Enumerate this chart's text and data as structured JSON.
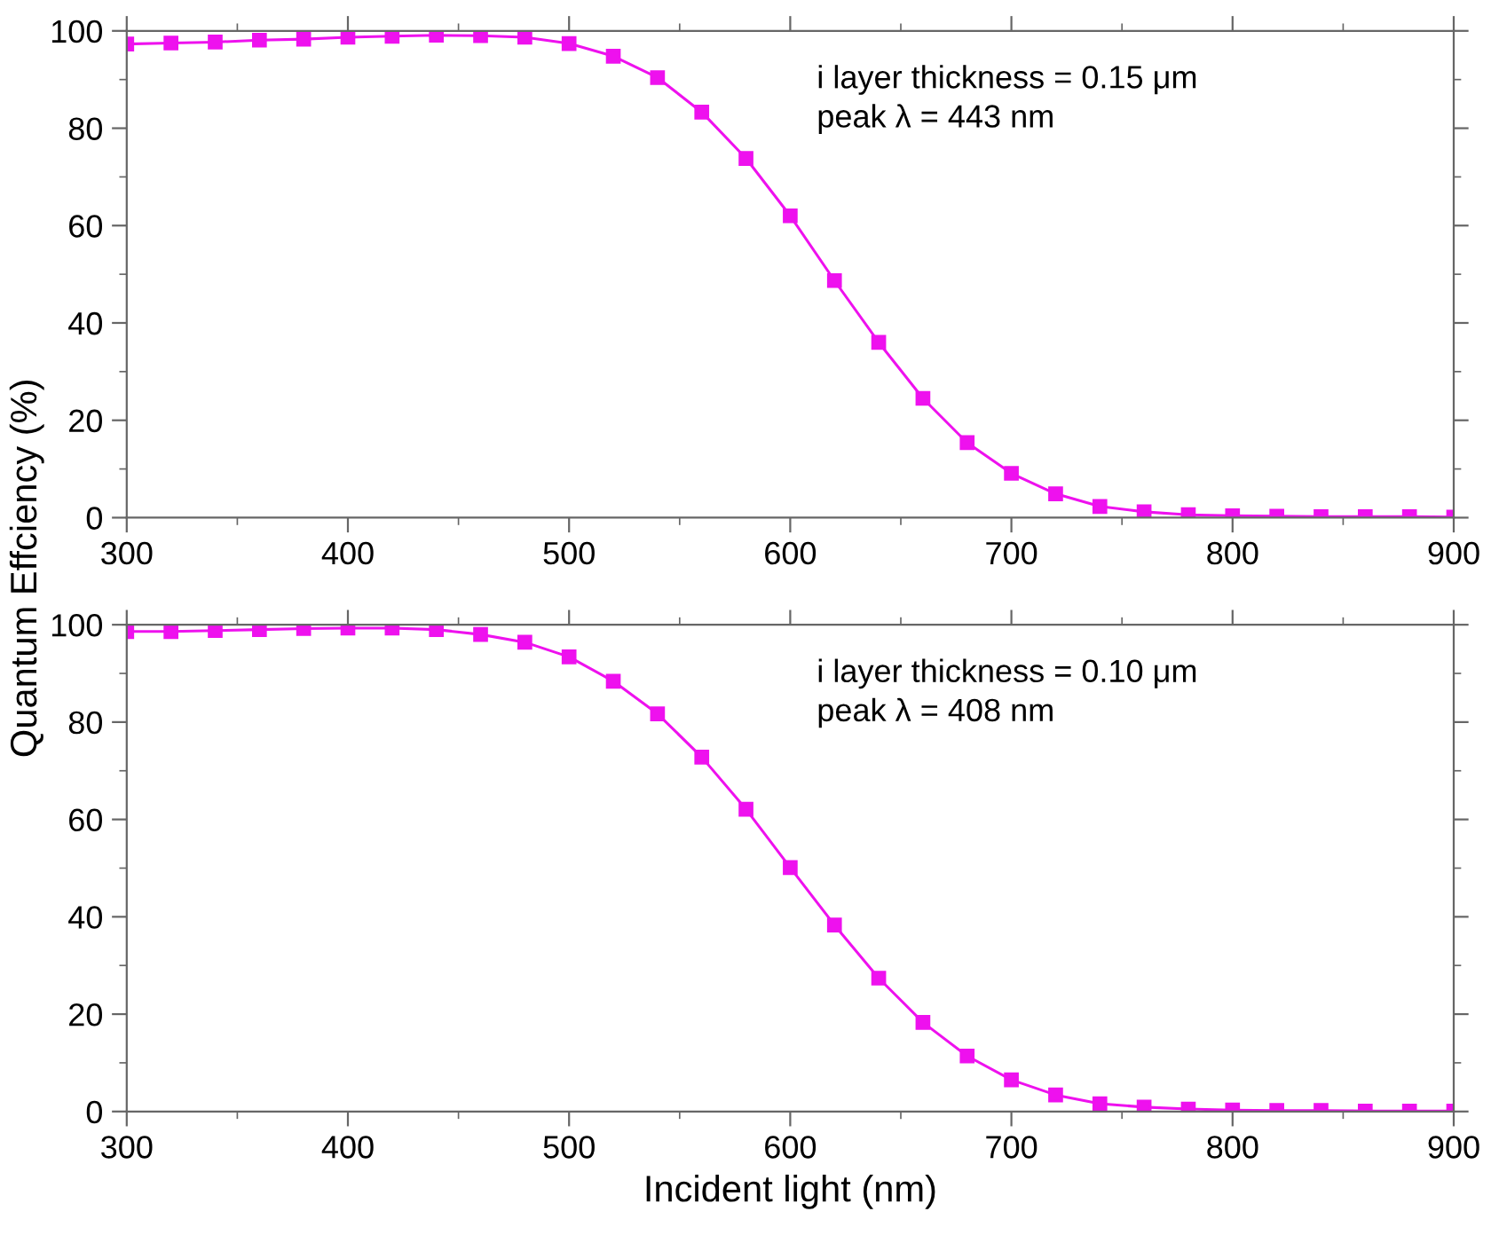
{
  "chart_data": [
    {
      "type": "line",
      "ylabel": "Quantum Effciency (%)",
      "annotations": [
        "i layer thickness = 0.15 μm\npeak λ = 443 nm"
      ],
      "x": [
        300,
        320,
        340,
        360,
        380,
        400,
        420,
        440,
        460,
        480,
        500,
        520,
        540,
        560,
        580,
        600,
        620,
        640,
        660,
        680,
        700,
        720,
        740,
        760,
        780,
        800,
        820,
        840,
        860,
        880,
        900
      ],
      "series": [
        {
          "color": "#ee11ee",
          "values": [
            97.3,
            97.5,
            97.7,
            98.1,
            98.3,
            98.7,
            98.9,
            99.1,
            99.0,
            98.7,
            97.4,
            94.8,
            90.4,
            83.3,
            73.8,
            62.0,
            48.7,
            36.0,
            24.5,
            15.4,
            9.1,
            4.9,
            2.3,
            1.2,
            0.6,
            0.4,
            0.3,
            0.2,
            0.2,
            0.2,
            0.1
          ]
        }
      ],
      "xlim": [
        300,
        900
      ],
      "xticks": [
        300,
        400,
        500,
        600,
        700,
        800,
        900
      ],
      "ylim": [
        0,
        100
      ],
      "yticks": [
        0,
        20,
        40,
        60,
        80,
        100
      ],
      "marker": "square",
      "line_style": "solid"
    },
    {
      "type": "line",
      "xlabel": "Incident light (nm)",
      "annotations": [
        "i layer thickness = 0.10 μm\npeak λ = 408 nm"
      ],
      "x": [
        300,
        320,
        340,
        360,
        380,
        400,
        420,
        440,
        460,
        480,
        500,
        520,
        540,
        560,
        580,
        600,
        620,
        640,
        660,
        680,
        700,
        720,
        740,
        760,
        780,
        800,
        820,
        840,
        860,
        880,
        900
      ],
      "series": [
        {
          "color": "#ee11ee",
          "values": [
            98.6,
            98.6,
            98.8,
            99.0,
            99.2,
            99.3,
            99.3,
            99.0,
            98.0,
            96.4,
            93.4,
            88.4,
            81.7,
            72.8,
            62.1,
            50.1,
            38.3,
            27.4,
            18.3,
            11.4,
            6.5,
            3.4,
            1.6,
            0.9,
            0.5,
            0.3,
            0.2,
            0.2,
            0.1,
            0.1,
            0.1
          ]
        }
      ],
      "xlim": [
        300,
        900
      ],
      "xticks": [
        300,
        400,
        500,
        600,
        700,
        800,
        900
      ],
      "ylim": [
        0,
        100
      ],
      "yticks": [
        0,
        20,
        40,
        60,
        80,
        100
      ],
      "marker": "square",
      "line_style": "solid"
    }
  ]
}
